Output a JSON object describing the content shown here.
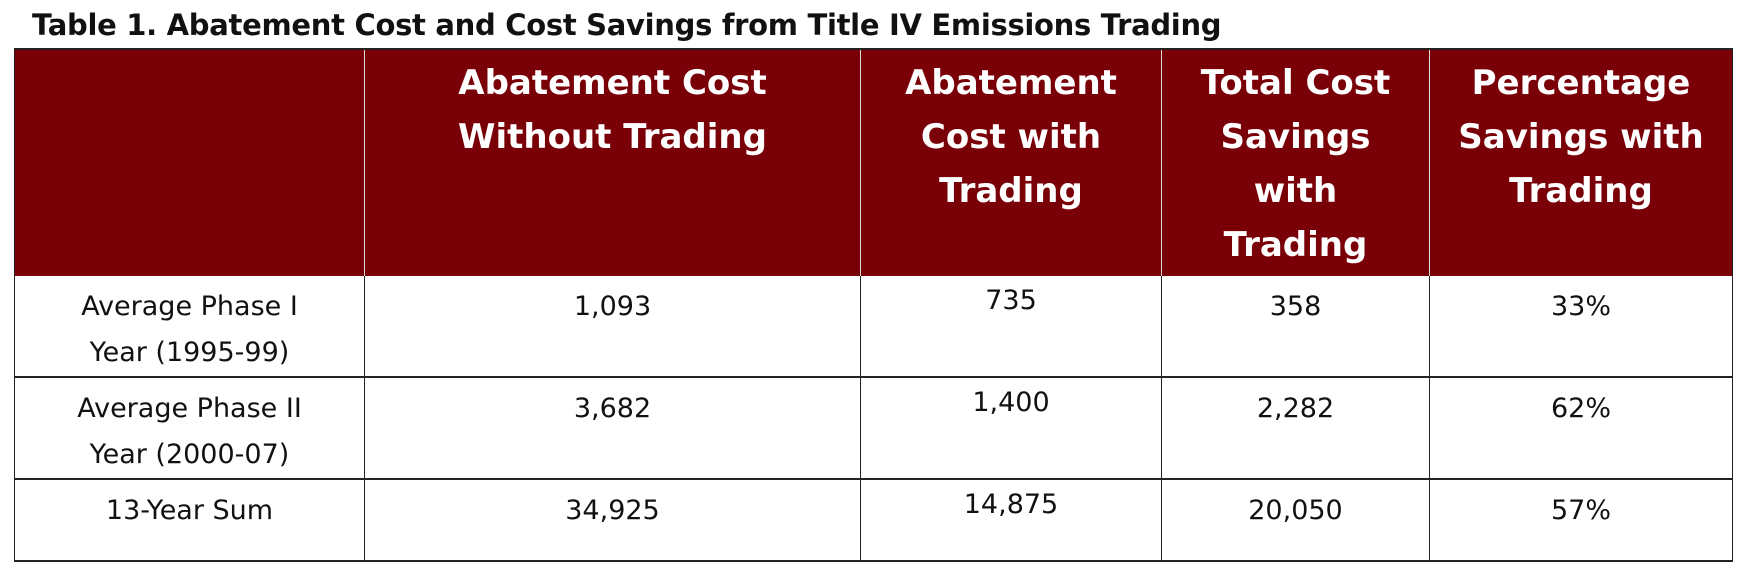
{
  "caption": "Table 1. Abatement Cost and Cost Savings from Title IV Emissions Trading",
  "table": {
    "headers": [
      "",
      "Abatement Cost\nWithout Trading",
      "Abatement\nCost with\nTrading",
      "Total Cost\nSavings\nwith\nTrading",
      "Percentage\nSavings with\nTrading"
    ],
    "rows": [
      [
        "Average Phase I\nYear (1995-99)",
        "1,093",
        "735",
        "358",
        "33%"
      ],
      [
        "Average Phase II\nYear (2000-07)",
        "3,682",
        "1,400",
        "2,282",
        "62%"
      ],
      [
        "13-Year Sum",
        "34,925",
        "14,875",
        "20,050",
        "57%"
      ]
    ]
  },
  "colors": {
    "header_background": "#7a0008",
    "header_text": "#ffffff",
    "body_text": "#111111",
    "grid": "#222222"
  }
}
